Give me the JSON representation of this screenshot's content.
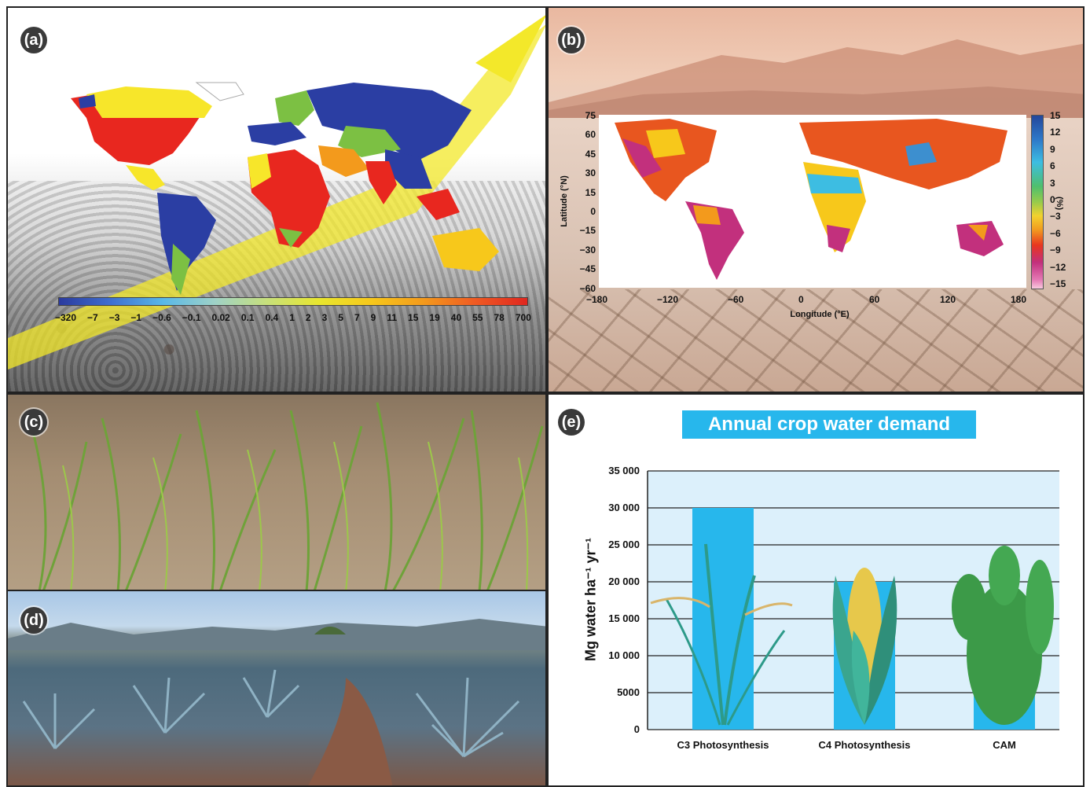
{
  "panel_labels": {
    "a": "(a)",
    "b": "(b)",
    "c": "(c)",
    "d": "(d)",
    "e": "(e)"
  },
  "panel_a": {
    "colorbar_ticks": [
      "−320",
      "−7",
      "−3",
      "−1",
      "−0.6",
      "−0.1",
      "0.02",
      "0.1",
      "0.4",
      "1",
      "2",
      "3",
      "5",
      "7",
      "9",
      "11",
      "15",
      "19",
      "40",
      "55",
      "78",
      "700"
    ]
  },
  "panel_b": {
    "ylabel": "Latitude (°N)",
    "xlabel": "Longitude (°E)",
    "y_ticks": [
      "75",
      "60",
      "45",
      "30",
      "15",
      "0",
      "−15",
      "−30",
      "−45",
      "−60"
    ],
    "x_ticks": [
      "−180",
      "−120",
      "−60",
      "0",
      "60",
      "120",
      "180"
    ],
    "colorbar_ticks": [
      "15",
      "12",
      "9",
      "6",
      "3",
      "0",
      "−3",
      "−6",
      "−9",
      "−12",
      "−15"
    ],
    "colorbar_unit": "(%)"
  },
  "chart_data": {
    "type": "bar",
    "title": "Annual crop water demand",
    "ylabel": "Mg water ha⁻¹ yr⁻¹",
    "xlabel": "",
    "categories": [
      "C3 Photosynthesis",
      "C4 Photosynthesis",
      "CAM"
    ],
    "values": [
      30000,
      20000,
      5000
    ],
    "ylim": [
      0,
      35000
    ],
    "yticks": [
      "35 000",
      "30 000",
      "25 000",
      "20 000",
      "15 000",
      "10 000",
      "5000",
      "0"
    ],
    "grid": true
  },
  "colors": {
    "bar": "#27b7ec",
    "title_bg": "#27b7ec",
    "plot_bg": "#dcf0fb"
  }
}
